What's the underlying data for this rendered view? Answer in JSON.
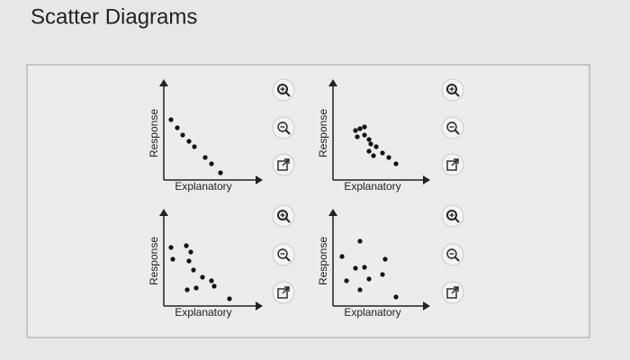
{
  "header": {
    "title": "Scatter Diagrams"
  },
  "panels": [
    {
      "x_label": "Explanatory",
      "y_label": "Response"
    },
    {
      "x_label": "Explanatory",
      "y_label": "Response"
    },
    {
      "x_label": "Explanatory",
      "y_label": "Response"
    },
    {
      "x_label": "Explanatory",
      "y_label": "Response"
    }
  ]
}
